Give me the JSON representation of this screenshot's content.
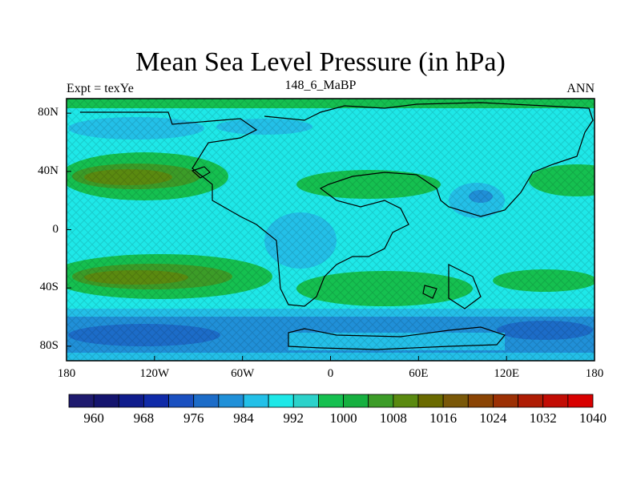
{
  "title": "Mean Sea Level Pressure (in hPa)",
  "subtitle_left": "Expt = texYe",
  "subtitle_center": "148_6_MaBP",
  "subtitle_right": "ANN",
  "lat_ticks": [
    "80N",
    "40N",
    "0",
    "40S",
    "80S"
  ],
  "lon_ticks": [
    "180",
    "120W",
    "60W",
    "0",
    "60E",
    "120E",
    "180"
  ],
  "colorbar": {
    "labels": [
      "960",
      "968",
      "976",
      "984",
      "992",
      "1000",
      "1008",
      "1016",
      "1024",
      "1032",
      "1040"
    ],
    "colors": [
      "#1e1a6e",
      "#14146e",
      "#0f1c8c",
      "#0f2aa8",
      "#1a50c0",
      "#1c6cc8",
      "#2090d8",
      "#23c0e8",
      "#1ee8e8",
      "#2cd2ca",
      "#15c050",
      "#16b040",
      "#3c9c28",
      "#5a8a10",
      "#6a6a00",
      "#7a5808",
      "#8a4404",
      "#9c3004",
      "#ae1c04",
      "#c20c04",
      "#d80000"
    ],
    "note_labels_every": 2
  },
  "colors": {
    "land_outline": "#000000",
    "ocean_base": "#1ee8e8"
  },
  "chart_data": {
    "type": "heatmap",
    "title": "Mean Sea Level Pressure (in hPa)",
    "xlabel": "",
    "ylabel": "",
    "xlim": [
      -180,
      180
    ],
    "ylim": [
      -90,
      90
    ],
    "zones": [
      {
        "lat_range": [
          75,
          90
        ],
        "level": 1008
      },
      {
        "lat_range": [
          55,
          75
        ],
        "level": 992
      },
      {
        "lat_range": [
          20,
          50
        ],
        "level": 1016
      },
      {
        "lat_range": [
          -15,
          15
        ],
        "level": 1000
      },
      {
        "lat_range": [
          -50,
          -20
        ],
        "level": 1016
      },
      {
        "lat_range": [
          -90,
          -60
        ],
        "level": 984
      }
    ],
    "colorbar_range": [
      960,
      1040
    ]
  }
}
